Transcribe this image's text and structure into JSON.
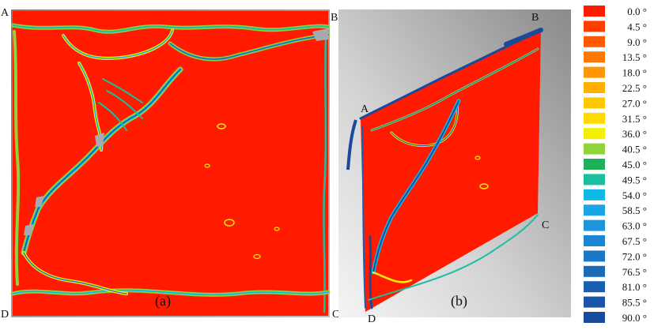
{
  "panel_a": {
    "label": "(a)",
    "corners": {
      "a": "A",
      "b": "B",
      "c": "C",
      "d": "D"
    }
  },
  "panel_b": {
    "label": "(b)",
    "corners": {
      "a": "A",
      "b": "B",
      "c": "C",
      "d": "D"
    }
  },
  "legend": {
    "items": [
      {
        "label": "0.0 °",
        "color": "#ff1a00"
      },
      {
        "label": "4.5 °",
        "color": "#ff3d00"
      },
      {
        "label": "9.0 °",
        "color": "#ff5a00"
      },
      {
        "label": "13.5 °",
        "color": "#ff7800"
      },
      {
        "label": "18.0 °",
        "color": "#ff9600"
      },
      {
        "label": "22.5 °",
        "color": "#ffb000"
      },
      {
        "label": "27.0 °",
        "color": "#ffc800"
      },
      {
        "label": "31.5 °",
        "color": "#ffdc00"
      },
      {
        "label": "36.0 °",
        "color": "#f5f000"
      },
      {
        "label": "40.5 °",
        "color": "#8fd43a"
      },
      {
        "label": "45.0 °",
        "color": "#1fb05a"
      },
      {
        "label": "49.5 °",
        "color": "#1abfa0"
      },
      {
        "label": "54.0 °",
        "color": "#10b8e8"
      },
      {
        "label": "58.5 °",
        "color": "#1aa6e6"
      },
      {
        "label": "63.0 °",
        "color": "#1a96dc"
      },
      {
        "label": "67.5 °",
        "color": "#1a86d2"
      },
      {
        "label": "72.0 °",
        "color": "#1a78c8"
      },
      {
        "label": "76.5 °",
        "color": "#1a6abc"
      },
      {
        "label": "81.0 °",
        "color": "#1a5eb0"
      },
      {
        "label": "85.5 °",
        "color": "#1a54a6"
      },
      {
        "label": "90.0 °",
        "color": "#1a4a9c"
      }
    ]
  }
}
